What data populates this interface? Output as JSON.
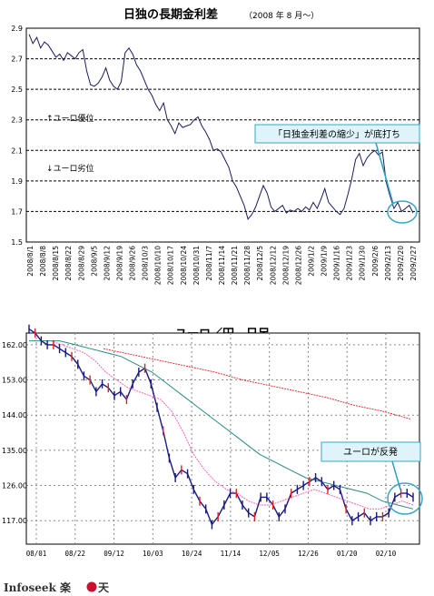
{
  "chart_data": [
    {
      "type": "line",
      "title": "日独の長期金利差",
      "subtitle": "（2008 年 8 月～）",
      "ylim": [
        1.5,
        2.9
      ],
      "y_ticks": [
        "1.5",
        "1.7",
        "1.9",
        "2.1",
        "2.3",
        "2.5",
        "2.7",
        "2.9"
      ],
      "grid": true,
      "x_tick_labels": [
        "2008/8/1",
        "2008/8/8",
        "2008/8/15",
        "2008/8/22",
        "2008/8/29",
        "2008/9/5",
        "2008/9/12",
        "2008/9/19",
        "2008/9/26",
        "2008/10/3",
        "2008/10/10",
        "2008/10/17",
        "2008/10/24",
        "2008/10/31",
        "2008/11/7",
        "2008/11/14",
        "2008/11/21",
        "2008/11/28",
        "2008/12/5",
        "2008/12/12",
        "2008/12/19",
        "2008/12/26",
        "2009/1/2",
        "2009/1/9",
        "2009/1/16",
        "2009/1/23",
        "2009/1/30",
        "2009/2/6",
        "2009/2/13",
        "2009/2/20",
        "2009/2/27"
      ],
      "annotations": {
        "up": "↑ユーロ優位",
        "down": "↓ユーロ劣位",
        "callout": "「日独金利差の縮少」が底打ち"
      },
      "series": [
        {
          "values": [
            2.86,
            2.8,
            2.84,
            2.77,
            2.81,
            2.79,
            2.75,
            2.71,
            2.73,
            2.69,
            2.74,
            2.72,
            2.7,
            2.74,
            2.76,
            2.62,
            2.53,
            2.52,
            2.54,
            2.58,
            2.64,
            2.56,
            2.52,
            2.5,
            2.55,
            2.74,
            2.77,
            2.73,
            2.66,
            2.62,
            2.56,
            2.5,
            2.46,
            2.4,
            2.36,
            2.41,
            2.3,
            2.26,
            2.21,
            2.28,
            2.25,
            2.26,
            2.27,
            2.3,
            2.32,
            2.26,
            2.22,
            2.17,
            2.1,
            2.11,
            2.09,
            2.04,
            1.99,
            1.9,
            1.86,
            1.8,
            1.74,
            1.65,
            1.68,
            1.73,
            1.8,
            1.87,
            1.82,
            1.73,
            1.7,
            1.72,
            1.74,
            1.69,
            1.71,
            1.7,
            1.72,
            1.7,
            1.73,
            1.71,
            1.76,
            1.72,
            1.78,
            1.85,
            1.76,
            1.73,
            1.7,
            1.68,
            1.72,
            1.81,
            1.91,
            2.04,
            2.08,
            2.0,
            2.05,
            2.08,
            2.1,
            2.07,
            2.09,
            1.89,
            1.8,
            1.72,
            1.76,
            1.7,
            1.72,
            1.74,
            1.69
          ]
        }
      ]
    },
    {
      "type": "line",
      "title": "ユーロ／円　日足",
      "ylim": [
        111,
        165
      ],
      "y_ticks": [
        "117.00",
        "126.00",
        "135.00",
        "144.00",
        "153.00",
        "162.00"
      ],
      "y_tick_values": [
        117,
        126,
        135,
        144,
        153,
        162
      ],
      "x_tick_labels": [
        "08/01",
        "08/22",
        "09/12",
        "10/03",
        "10/24",
        "11/14",
        "12/05",
        "12/26",
        "01/20",
        "02/10"
      ],
      "grid": true,
      "annotations": {
        "callout": "ユーロが反発"
      },
      "series": [
        {
          "name": "",
          "values": [
            166,
            165,
            163,
            162,
            162,
            161,
            160,
            159,
            157,
            154,
            153,
            150,
            152,
            151,
            149,
            150,
            148,
            152,
            155,
            156,
            152,
            146,
            140,
            133,
            128,
            130,
            129,
            125,
            122,
            120,
            116,
            118,
            121,
            124,
            124,
            121,
            119,
            118,
            123,
            123,
            121,
            118,
            120,
            124,
            125,
            126,
            127,
            128,
            127,
            125,
            126,
            125,
            120,
            117,
            118,
            119,
            117,
            118,
            118,
            119,
            123,
            124,
            124,
            123
          ]
        },
        {
          "name": "",
          "values": [
            163,
            163,
            162,
            161,
            160,
            158,
            155,
            153,
            151,
            150,
            149,
            148,
            145,
            140,
            134,
            130,
            127,
            125,
            124,
            122,
            121,
            121,
            122,
            123,
            124,
            125,
            124,
            123,
            122,
            121,
            120,
            120,
            121,
            122,
            121
          ]
        },
        {
          "name": "",
          "values": [
            163,
            163,
            163,
            162,
            161,
            160,
            159,
            157,
            155,
            152,
            149,
            146,
            143,
            140,
            137,
            134,
            132,
            130,
            128,
            127,
            126,
            125,
            124,
            122,
            121,
            120
          ]
        },
        {
          "name": "",
          "values": [
            161,
            159.5,
            158,
            156.5,
            155,
            153,
            151.5,
            150,
            148.5,
            146.5,
            145,
            143
          ]
        }
      ]
    }
  ],
  "logo": {
    "text": "Infoseek 楽",
    "tail": "天"
  }
}
